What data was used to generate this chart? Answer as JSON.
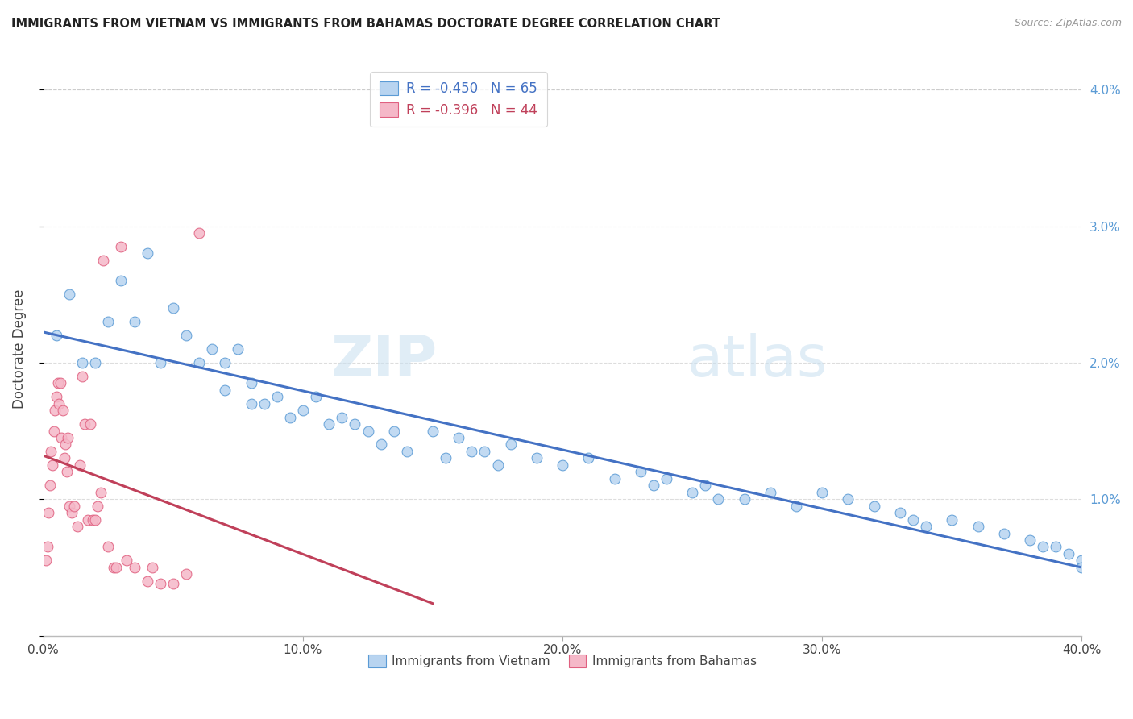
{
  "title": "IMMIGRANTS FROM VIETNAM VS IMMIGRANTS FROM BAHAMAS DOCTORATE DEGREE CORRELATION CHART",
  "source": "Source: ZipAtlas.com",
  "ylabel": "Doctorate Degree",
  "legend_vietnam": "R = -0.450   N = 65",
  "legend_bahamas": "R = -0.396   N = 44",
  "legend_label_vietnam": "Immigrants from Vietnam",
  "legend_label_bahamas": "Immigrants from Bahamas",
  "color_vietnam_face": "#b8d4f0",
  "color_vietnam_edge": "#5b9bd5",
  "color_bahamas_face": "#f5b8c8",
  "color_bahamas_edge": "#e06080",
  "color_line_vietnam": "#4472c4",
  "color_line_bahamas": "#c0405a",
  "watermark": "ZIPatlas",
  "vietnam_x": [
    0.5,
    1.0,
    1.5,
    2.0,
    2.5,
    3.0,
    3.5,
    4.0,
    4.5,
    5.0,
    5.5,
    6.0,
    6.5,
    7.0,
    7.0,
    7.5,
    8.0,
    8.0,
    8.5,
    9.0,
    9.5,
    10.0,
    10.5,
    11.0,
    11.5,
    12.0,
    12.5,
    13.0,
    13.5,
    14.0,
    15.0,
    15.5,
    16.0,
    16.5,
    17.0,
    17.5,
    18.0,
    19.0,
    20.0,
    21.0,
    22.0,
    23.0,
    23.5,
    24.0,
    25.0,
    25.5,
    26.0,
    27.0,
    28.0,
    29.0,
    30.0,
    31.0,
    32.0,
    33.0,
    33.5,
    34.0,
    35.0,
    36.0,
    37.0,
    38.0,
    38.5,
    39.0,
    39.5,
    40.0,
    40.0
  ],
  "vietnam_y": [
    2.2,
    2.5,
    2.0,
    2.0,
    2.3,
    2.6,
    2.3,
    2.8,
    2.0,
    2.4,
    2.2,
    2.0,
    2.1,
    1.8,
    2.0,
    2.1,
    1.7,
    1.85,
    1.7,
    1.75,
    1.6,
    1.65,
    1.75,
    1.55,
    1.6,
    1.55,
    1.5,
    1.4,
    1.5,
    1.35,
    1.5,
    1.3,
    1.45,
    1.35,
    1.35,
    1.25,
    1.4,
    1.3,
    1.25,
    1.3,
    1.15,
    1.2,
    1.1,
    1.15,
    1.05,
    1.1,
    1.0,
    1.0,
    1.05,
    0.95,
    1.05,
    1.0,
    0.95,
    0.9,
    0.85,
    0.8,
    0.85,
    0.8,
    0.75,
    0.7,
    0.65,
    0.65,
    0.6,
    0.55,
    0.5
  ],
  "bahamas_x": [
    0.1,
    0.15,
    0.2,
    0.25,
    0.3,
    0.35,
    0.4,
    0.45,
    0.5,
    0.55,
    0.6,
    0.65,
    0.7,
    0.75,
    0.8,
    0.85,
    0.9,
    0.95,
    1.0,
    1.1,
    1.2,
    1.3,
    1.4,
    1.5,
    1.6,
    1.7,
    1.8,
    1.9,
    2.0,
    2.1,
    2.2,
    2.3,
    2.5,
    2.7,
    2.8,
    3.0,
    3.2,
    3.5,
    4.0,
    4.2,
    4.5,
    5.0,
    5.5,
    6.0
  ],
  "bahamas_y": [
    0.55,
    0.65,
    0.9,
    1.1,
    1.35,
    1.25,
    1.5,
    1.65,
    1.75,
    1.85,
    1.7,
    1.85,
    1.45,
    1.65,
    1.3,
    1.4,
    1.2,
    1.45,
    0.95,
    0.9,
    0.95,
    0.8,
    1.25,
    1.9,
    1.55,
    0.85,
    1.55,
    0.85,
    0.85,
    0.95,
    1.05,
    2.75,
    0.65,
    0.5,
    0.5,
    2.85,
    0.55,
    0.5,
    0.4,
    0.5,
    0.38,
    0.38,
    0.45,
    2.95
  ],
  "xlim": [
    0,
    40
  ],
  "ylim": [
    0,
    4.2
  ],
  "ytick_vals": [
    0,
    1.0,
    2.0,
    3.0,
    4.0
  ],
  "ytick_labels": [
    "",
    "1.0%",
    "2.0%",
    "3.0%",
    "4.0%"
  ],
  "xtick_vals": [
    0,
    10,
    20,
    30,
    40
  ],
  "xtick_labels": [
    "0.0%",
    "10.0%",
    "20.0%",
    "30.0%",
    "40.0%"
  ]
}
